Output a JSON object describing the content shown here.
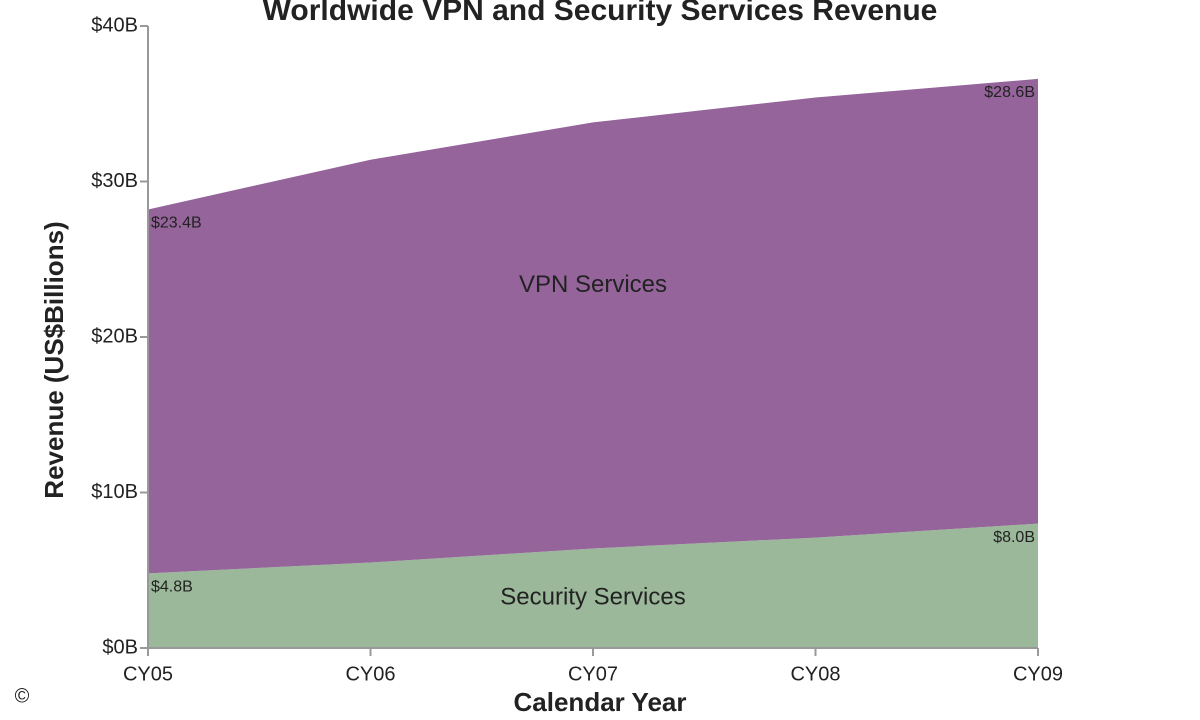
{
  "chart_data": {
    "type": "stacked_area",
    "title": "Worldwide VPN and Security Services Revenue",
    "x_label": "Calendar Year",
    "y_label": "Revenue (US$Billions)",
    "categories": [
      "CY05",
      "CY06",
      "CY07",
      "CY08",
      "CY09"
    ],
    "series": [
      {
        "name": "Security Services",
        "color": "#9bb89a",
        "values": [
          4.8,
          5.5,
          6.4,
          7.1,
          8.0
        ],
        "value_labels": [
          "$4.8B",
          null,
          null,
          null,
          "$8.0B"
        ]
      },
      {
        "name": "VPN Services",
        "color": "#94649a",
        "values": [
          23.4,
          25.9,
          27.4,
          28.3,
          28.6
        ],
        "value_labels": [
          "$23.4B",
          null,
          null,
          null,
          "$28.6B"
        ]
      }
    ],
    "ylim": [
      0,
      40
    ],
    "yticks": [
      {
        "value": 0,
        "label": "$0B"
      },
      {
        "value": 10,
        "label": "$10B"
      },
      {
        "value": 20,
        "label": "$20B"
      },
      {
        "value": 30,
        "label": "$30B"
      },
      {
        "value": 40,
        "label": "$40B"
      }
    ],
    "watermark": "©"
  }
}
